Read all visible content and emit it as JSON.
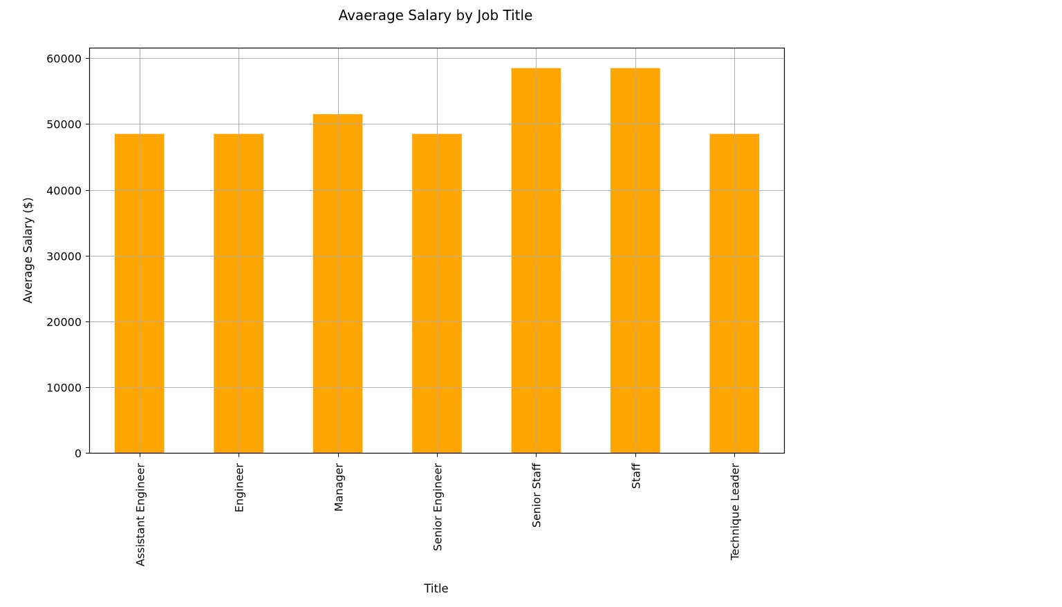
{
  "chart_data": {
    "type": "bar",
    "title": "Avaerage Salary by Job Title",
    "xlabel": "Title",
    "ylabel": "Average Salary ($)",
    "categories": [
      "Assistant Engineer",
      "Engineer",
      "Manager",
      "Senior Engineer",
      "Senior Staff",
      "Staff",
      "Technique Leader"
    ],
    "values": [
      48500,
      48500,
      51500,
      48500,
      58500,
      58500,
      48500
    ],
    "ylim": [
      0,
      61500
    ],
    "yticks": [
      0,
      10000,
      20000,
      30000,
      40000,
      50000,
      60000
    ],
    "ytick_labels": [
      "0",
      "10000",
      "20000",
      "30000",
      "40000",
      "50000",
      "60000"
    ],
    "grid": true,
    "bar_color": "#FFA500"
  }
}
